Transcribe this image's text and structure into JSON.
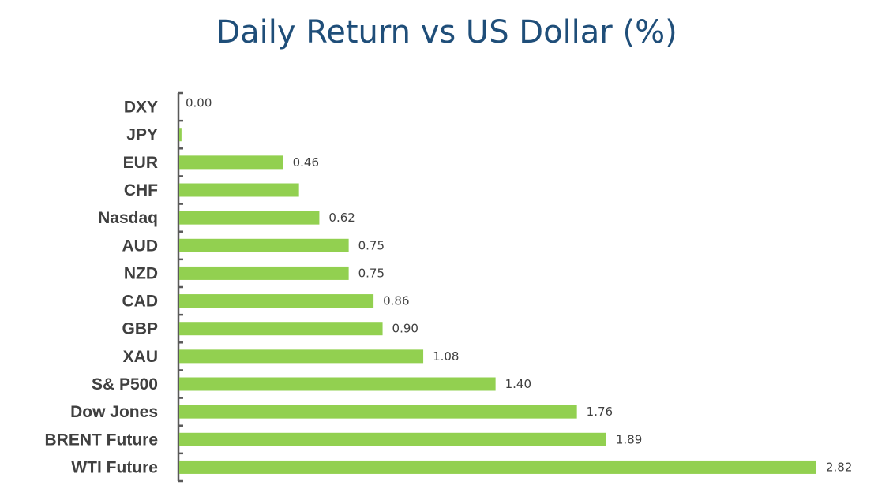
{
  "chart_data": {
    "type": "bar",
    "orientation": "horizontal",
    "title": "Daily Return vs US Dollar (%)",
    "xlabel": "",
    "ylabel": "",
    "categories": [
      "DXY",
      "JPY",
      "EUR",
      "CHF",
      "Nasdaq",
      "AUD",
      "NZD",
      "CAD",
      "GBP",
      "XAU",
      "S& P500",
      "Dow Jones",
      "BRENT Future",
      "WTI Future"
    ],
    "values": [
      0.0,
      0.01,
      0.46,
      0.53,
      0.62,
      0.75,
      0.75,
      0.86,
      0.9,
      1.08,
      1.4,
      1.76,
      1.89,
      2.82
    ],
    "data_labels": [
      "0.00",
      "",
      "0.46",
      "",
      "0.62",
      "0.75",
      "0.75",
      "0.86",
      "0.90",
      "1.08",
      "1.40",
      "1.76",
      "1.89",
      "2.82"
    ],
    "xlim": [
      0,
      2.82
    ],
    "grid": false,
    "legend": "none",
    "bar_color": "#92d050",
    "title_color": "#1f4e79",
    "axis_color": "#595959"
  }
}
